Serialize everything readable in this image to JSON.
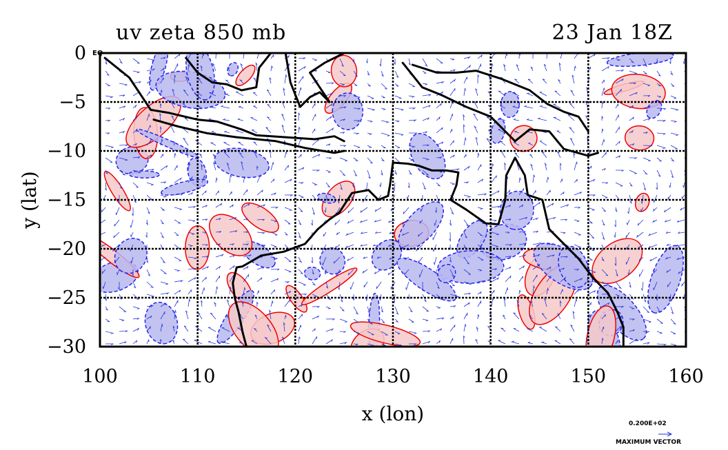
{
  "header": {
    "title_left": "uv zeta 850 mb",
    "title_right": "23 Jan 18Z",
    "corner_label": "EQ"
  },
  "legend": {
    "vector_value": "0.200E+02",
    "vector_caption": "MAXIMUM VECTOR"
  },
  "colors": {
    "positive_fill": "#f6c9c9",
    "positive_line": "#ee0000",
    "negative_fill": "#b8b8f0",
    "negative_line": "#2222ee",
    "coast": "#000000",
    "vector": "#2233dd"
  },
  "chart_data": {
    "type": "contour",
    "title": "uv zeta 850 mb",
    "subtitle": "23 Jan 18Z",
    "xlabel": "x (lon)",
    "ylabel": "y (lat)",
    "xlim": [
      100,
      160
    ],
    "ylim": [
      -30,
      0
    ],
    "xticks": [
      100,
      110,
      120,
      130,
      140,
      150,
      160
    ],
    "yticks": [
      0,
      -5,
      -10,
      -15,
      -20,
      -25,
      -30
    ],
    "ytick_labels": [
      "0",
      "−5",
      "−10",
      "−15",
      "−20",
      "−25",
      "−30"
    ],
    "grid": true,
    "overlay": "wind vectors",
    "vector_reference": "0.200E+02"
  }
}
